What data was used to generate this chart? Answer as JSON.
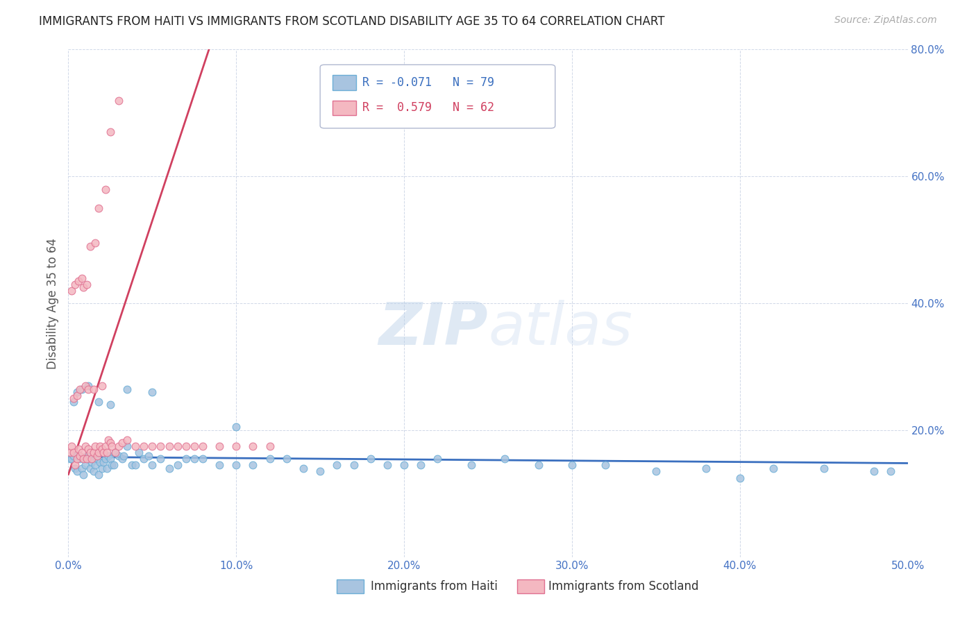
{
  "title": "IMMIGRANTS FROM HAITI VS IMMIGRANTS FROM SCOTLAND DISABILITY AGE 35 TO 64 CORRELATION CHART",
  "source": "Source: ZipAtlas.com",
  "ylabel": "Disability Age 35 to 64",
  "xlim": [
    0.0,
    0.5
  ],
  "ylim": [
    0.0,
    0.8
  ],
  "xtick_labels": [
    "0.0%",
    "10.0%",
    "20.0%",
    "30.0%",
    "40.0%",
    "50.0%"
  ],
  "xtick_values": [
    0.0,
    0.1,
    0.2,
    0.3,
    0.4,
    0.5
  ],
  "ytick_labels": [
    "20.0%",
    "40.0%",
    "60.0%",
    "80.0%"
  ],
  "ytick_values": [
    0.2,
    0.4,
    0.6,
    0.8
  ],
  "haiti_color": "#a8c4e0",
  "haiti_edge_color": "#6baed6",
  "scotland_color": "#f4b8c1",
  "scotland_edge_color": "#e07090",
  "haiti_R": -0.071,
  "haiti_N": 79,
  "scotland_R": 0.579,
  "scotland_N": 62,
  "haiti_line_color": "#3a6fbf",
  "scotland_line_color": "#d04060",
  "haiti_slope": -0.02,
  "haiti_intercept": 0.158,
  "scotland_slope": 8.0,
  "scotland_intercept": 0.13,
  "watermark_zip": "ZIP",
  "watermark_atlas": "atlas",
  "background_color": "#ffffff",
  "grid_color": "#d0d8e8",
  "haiti_scatter_x": [
    0.001,
    0.002,
    0.003,
    0.004,
    0.005,
    0.006,
    0.007,
    0.008,
    0.009,
    0.01,
    0.011,
    0.012,
    0.013,
    0.014,
    0.015,
    0.016,
    0.017,
    0.018,
    0.019,
    0.02,
    0.021,
    0.022,
    0.023,
    0.024,
    0.025,
    0.026,
    0.027,
    0.028,
    0.03,
    0.032,
    0.033,
    0.035,
    0.038,
    0.04,
    0.042,
    0.045,
    0.048,
    0.05,
    0.055,
    0.06,
    0.065,
    0.07,
    0.075,
    0.08,
    0.09,
    0.1,
    0.11,
    0.12,
    0.13,
    0.14,
    0.15,
    0.16,
    0.17,
    0.18,
    0.19,
    0.2,
    0.21,
    0.22,
    0.24,
    0.26,
    0.28,
    0.3,
    0.32,
    0.35,
    0.38,
    0.4,
    0.42,
    0.45,
    0.48,
    0.49,
    0.003,
    0.005,
    0.008,
    0.012,
    0.018,
    0.025,
    0.035,
    0.05,
    0.1
  ],
  "haiti_scatter_y": [
    0.155,
    0.155,
    0.16,
    0.14,
    0.135,
    0.16,
    0.155,
    0.14,
    0.13,
    0.145,
    0.16,
    0.155,
    0.14,
    0.15,
    0.135,
    0.145,
    0.155,
    0.13,
    0.15,
    0.14,
    0.15,
    0.155,
    0.14,
    0.16,
    0.155,
    0.145,
    0.145,
    0.165,
    0.16,
    0.155,
    0.16,
    0.175,
    0.145,
    0.145,
    0.165,
    0.155,
    0.16,
    0.145,
    0.155,
    0.14,
    0.145,
    0.155,
    0.155,
    0.155,
    0.145,
    0.145,
    0.145,
    0.155,
    0.155,
    0.14,
    0.135,
    0.145,
    0.145,
    0.155,
    0.145,
    0.145,
    0.145,
    0.155,
    0.145,
    0.155,
    0.145,
    0.145,
    0.145,
    0.135,
    0.14,
    0.125,
    0.14,
    0.14,
    0.135,
    0.135,
    0.245,
    0.26,
    0.265,
    0.27,
    0.245,
    0.24,
    0.265,
    0.26,
    0.205
  ],
  "scotland_scatter_x": [
    0.001,
    0.002,
    0.003,
    0.004,
    0.005,
    0.006,
    0.007,
    0.008,
    0.009,
    0.01,
    0.011,
    0.012,
    0.013,
    0.014,
    0.015,
    0.016,
    0.017,
    0.018,
    0.019,
    0.02,
    0.021,
    0.022,
    0.023,
    0.024,
    0.025,
    0.026,
    0.028,
    0.03,
    0.032,
    0.035,
    0.04,
    0.045,
    0.05,
    0.055,
    0.06,
    0.065,
    0.07,
    0.075,
    0.08,
    0.09,
    0.1,
    0.11,
    0.12,
    0.003,
    0.005,
    0.007,
    0.01,
    0.012,
    0.015,
    0.02,
    0.002,
    0.004,
    0.006,
    0.008,
    0.009,
    0.011,
    0.013,
    0.016,
    0.018,
    0.022,
    0.025,
    0.03
  ],
  "scotland_scatter_y": [
    0.165,
    0.175,
    0.165,
    0.145,
    0.155,
    0.17,
    0.16,
    0.165,
    0.155,
    0.175,
    0.155,
    0.17,
    0.165,
    0.155,
    0.165,
    0.175,
    0.16,
    0.165,
    0.175,
    0.17,
    0.165,
    0.175,
    0.165,
    0.185,
    0.18,
    0.175,
    0.165,
    0.175,
    0.18,
    0.185,
    0.175,
    0.175,
    0.175,
    0.175,
    0.175,
    0.175,
    0.175,
    0.175,
    0.175,
    0.175,
    0.175,
    0.175,
    0.175,
    0.25,
    0.255,
    0.265,
    0.27,
    0.265,
    0.265,
    0.27,
    0.42,
    0.43,
    0.435,
    0.44,
    0.425,
    0.43,
    0.49,
    0.495,
    0.55,
    0.58,
    0.67,
    0.72
  ]
}
